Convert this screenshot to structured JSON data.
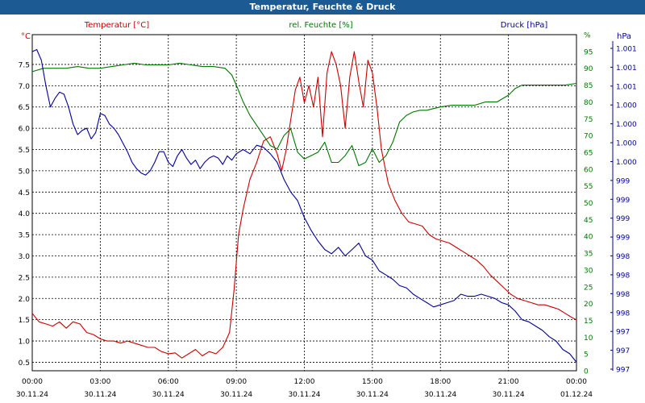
{
  "window_title": "Temperatur, Feuchte & Druck",
  "colors": {
    "temperature": "#cc0000",
    "humidity": "#007700",
    "pressure": "#000099",
    "titlebar": "#1c5a93",
    "grid": "#000000"
  },
  "chart_data": {
    "type": "line",
    "title": "Temperatur, Feuchte & Druck",
    "grid": true,
    "x_ticks": [
      {
        "time": "00:00",
        "date": "30.11.24"
      },
      {
        "time": "03:00",
        "date": "30.11.24"
      },
      {
        "time": "06:00",
        "date": "30.11.24"
      },
      {
        "time": "09:00",
        "date": "30.11.24"
      },
      {
        "time": "12:00",
        "date": "30.11.24"
      },
      {
        "time": "15:00",
        "date": "30.11.24"
      },
      {
        "time": "18:00",
        "date": "30.11.24"
      },
      {
        "time": "21:00",
        "date": "30.11.24"
      },
      {
        "time": "00:00",
        "date": "01.12.24"
      }
    ],
    "xlim_hours": [
      0,
      24
    ],
    "axes": {
      "temperature": {
        "unit_label": "°C",
        "series_label": "Temperatur [°C]",
        "ylim": [
          0.3,
          8.2
        ],
        "ticks": [
          "0.5",
          "1.0",
          "1.5",
          "2.0",
          "2.5",
          "3.0",
          "3.5",
          "4.0",
          "4.5",
          "5.0",
          "5.5",
          "6.0",
          "6.5",
          "7.0",
          "7.5"
        ]
      },
      "humidity": {
        "unit_label": "%",
        "series_label": "rel. Feuchte [%]",
        "ylim": [
          0,
          100
        ],
        "ticks": [
          "0",
          "5",
          "10",
          "15",
          "20",
          "25",
          "30",
          "35",
          "40",
          "45",
          "50",
          "55",
          "60",
          "65",
          "70",
          "75",
          "80",
          "85",
          "90",
          "95",
          "%"
        ]
      },
      "pressure": {
        "unit_label": "hPa",
        "series_label": "Druck [hPa]",
        "ticks": [
          "997",
          "997",
          "997",
          "998",
          "998",
          "998",
          "998",
          "999",
          "999",
          "999",
          "999",
          "1.000",
          "1.000",
          "1.000",
          "1.000",
          "1.001",
          "1.001",
          "1.001"
        ]
      }
    },
    "series": [
      {
        "name": "Temperatur [°C]",
        "axis": "temperature",
        "x": [
          0,
          0.3,
          0.6,
          0.9,
          1.2,
          1.5,
          1.8,
          2.1,
          2.4,
          2.7,
          3.0,
          3.3,
          3.6,
          3.9,
          4.2,
          4.5,
          4.8,
          5.1,
          5.4,
          5.7,
          6.0,
          6.3,
          6.6,
          6.9,
          7.2,
          7.5,
          7.8,
          8.1,
          8.4,
          8.7,
          8.9,
          9.1,
          9.3,
          9.6,
          9.9,
          10.2,
          10.5,
          10.8,
          11.0,
          11.2,
          11.4,
          11.6,
          11.8,
          12.0,
          12.2,
          12.4,
          12.6,
          12.8,
          13.0,
          13.2,
          13.4,
          13.6,
          13.8,
          14.0,
          14.2,
          14.4,
          14.6,
          14.8,
          15.0,
          15.2,
          15.4,
          15.7,
          16.0,
          16.3,
          16.6,
          16.9,
          17.2,
          17.5,
          17.8,
          18.1,
          18.4,
          18.7,
          19.0,
          19.3,
          19.6,
          19.9,
          20.2,
          20.5,
          20.8,
          21.1,
          21.4,
          21.7,
          22.0,
          22.3,
          22.6,
          22.9,
          23.2,
          23.5,
          23.8,
          24.0
        ],
        "values": [
          1.65,
          1.45,
          1.4,
          1.35,
          1.45,
          1.3,
          1.45,
          1.4,
          1.2,
          1.15,
          1.05,
          1.0,
          1.0,
          0.95,
          1.0,
          0.95,
          0.9,
          0.85,
          0.85,
          0.75,
          0.7,
          0.72,
          0.6,
          0.7,
          0.8,
          0.65,
          0.75,
          0.7,
          0.85,
          1.2,
          2.2,
          3.5,
          4.1,
          4.8,
          5.2,
          5.7,
          5.8,
          5.4,
          5.0,
          5.5,
          6.2,
          6.9,
          7.2,
          6.6,
          7.0,
          6.5,
          7.2,
          5.8,
          7.3,
          7.8,
          7.5,
          7.0,
          6.0,
          7.2,
          7.8,
          7.1,
          6.5,
          7.6,
          7.3,
          6.5,
          5.5,
          4.7,
          4.3,
          4.0,
          3.8,
          3.75,
          3.7,
          3.5,
          3.4,
          3.35,
          3.3,
          3.2,
          3.1,
          3.0,
          2.9,
          2.75,
          2.55,
          2.4,
          2.25,
          2.1,
          2.0,
          1.95,
          1.9,
          1.85,
          1.85,
          1.8,
          1.75,
          1.65,
          1.55,
          1.5
        ]
      },
      {
        "name": "rel. Feuchte [%]",
        "axis": "humidity",
        "x": [
          0,
          0.5,
          1.0,
          1.5,
          2.0,
          2.5,
          3.0,
          3.5,
          4.0,
          4.5,
          5.0,
          5.5,
          6.0,
          6.5,
          7.0,
          7.5,
          8.0,
          8.5,
          8.8,
          9.0,
          9.3,
          9.6,
          9.9,
          10.2,
          10.5,
          10.8,
          11.1,
          11.4,
          11.7,
          12.0,
          12.3,
          12.6,
          12.9,
          13.2,
          13.5,
          13.8,
          14.1,
          14.4,
          14.7,
          15.0,
          15.3,
          15.6,
          15.9,
          16.2,
          16.5,
          16.8,
          17.1,
          17.4,
          17.7,
          18.0,
          18.5,
          19.0,
          19.5,
          20.0,
          20.5,
          21.0,
          21.3,
          21.6,
          22.0,
          22.5,
          23.0,
          23.5,
          24.0
        ],
        "values": [
          89,
          90,
          90,
          90,
          90.5,
          90,
          90,
          90.5,
          91,
          91.5,
          91,
          91,
          91,
          91.5,
          91,
          90.5,
          90.5,
          90,
          88,
          85,
          80,
          76,
          73,
          70,
          67,
          66,
          70,
          72,
          65,
          63,
          64,
          65,
          68,
          62,
          62,
          64,
          67,
          61,
          62,
          66,
          62,
          64,
          68,
          74,
          76,
          77,
          77.5,
          77.5,
          78,
          78.5,
          79,
          79,
          79,
          80,
          80,
          82,
          84,
          85,
          85,
          85,
          85,
          85,
          85.5
        ]
      },
      {
        "name": "Druck [hPa]",
        "axis": "pressure",
        "x": [
          0,
          0.2,
          0.4,
          0.6,
          0.8,
          1.0,
          1.2,
          1.4,
          1.6,
          1.8,
          2.0,
          2.2,
          2.4,
          2.6,
          2.8,
          3.0,
          3.2,
          3.4,
          3.6,
          3.8,
          4.0,
          4.2,
          4.4,
          4.6,
          4.8,
          5.0,
          5.2,
          5.4,
          5.6,
          5.8,
          6.0,
          6.2,
          6.4,
          6.6,
          6.8,
          7.0,
          7.2,
          7.4,
          7.6,
          7.8,
          8.0,
          8.2,
          8.4,
          8.6,
          8.8,
          9.0,
          9.3,
          9.6,
          9.9,
          10.2,
          10.5,
          10.8,
          11.1,
          11.4,
          11.7,
          12.0,
          12.3,
          12.6,
          12.9,
          13.2,
          13.5,
          13.8,
          14.1,
          14.4,
          14.7,
          15.0,
          15.3,
          15.6,
          15.9,
          16.2,
          16.5,
          16.8,
          17.1,
          17.4,
          17.7,
          18.0,
          18.3,
          18.6,
          18.9,
          19.2,
          19.5,
          19.8,
          20.1,
          20.4,
          20.7,
          21.0,
          21.3,
          21.6,
          21.9,
          22.2,
          22.5,
          22.8,
          23.1,
          23.4,
          23.7,
          24.0
        ],
        "values": [
          7.8,
          7.85,
          7.6,
          7.0,
          6.5,
          6.7,
          6.85,
          6.8,
          6.5,
          6.1,
          5.85,
          5.95,
          6.0,
          5.75,
          5.9,
          6.35,
          6.3,
          6.1,
          6.0,
          5.85,
          5.65,
          5.45,
          5.2,
          5.05,
          4.95,
          4.9,
          5.0,
          5.2,
          5.45,
          5.45,
          5.2,
          5.1,
          5.35,
          5.5,
          5.3,
          5.15,
          5.25,
          5.05,
          5.2,
          5.3,
          5.35,
          5.3,
          5.15,
          5.35,
          5.25,
          5.4,
          5.5,
          5.4,
          5.6,
          5.55,
          5.4,
          5.2,
          4.8,
          4.5,
          4.3,
          3.9,
          3.6,
          3.35,
          3.15,
          3.05,
          3.2,
          3.0,
          3.15,
          3.3,
          3.0,
          2.9,
          2.65,
          2.55,
          2.45,
          2.3,
          2.25,
          2.1,
          2.0,
          1.9,
          1.8,
          1.85,
          1.9,
          1.95,
          2.1,
          2.05,
          2.05,
          2.1,
          2.05,
          2.0,
          1.9,
          1.85,
          1.7,
          1.5,
          1.45,
          1.35,
          1.25,
          1.1,
          1.0,
          0.8,
          0.7,
          0.5
        ]
      }
    ]
  }
}
